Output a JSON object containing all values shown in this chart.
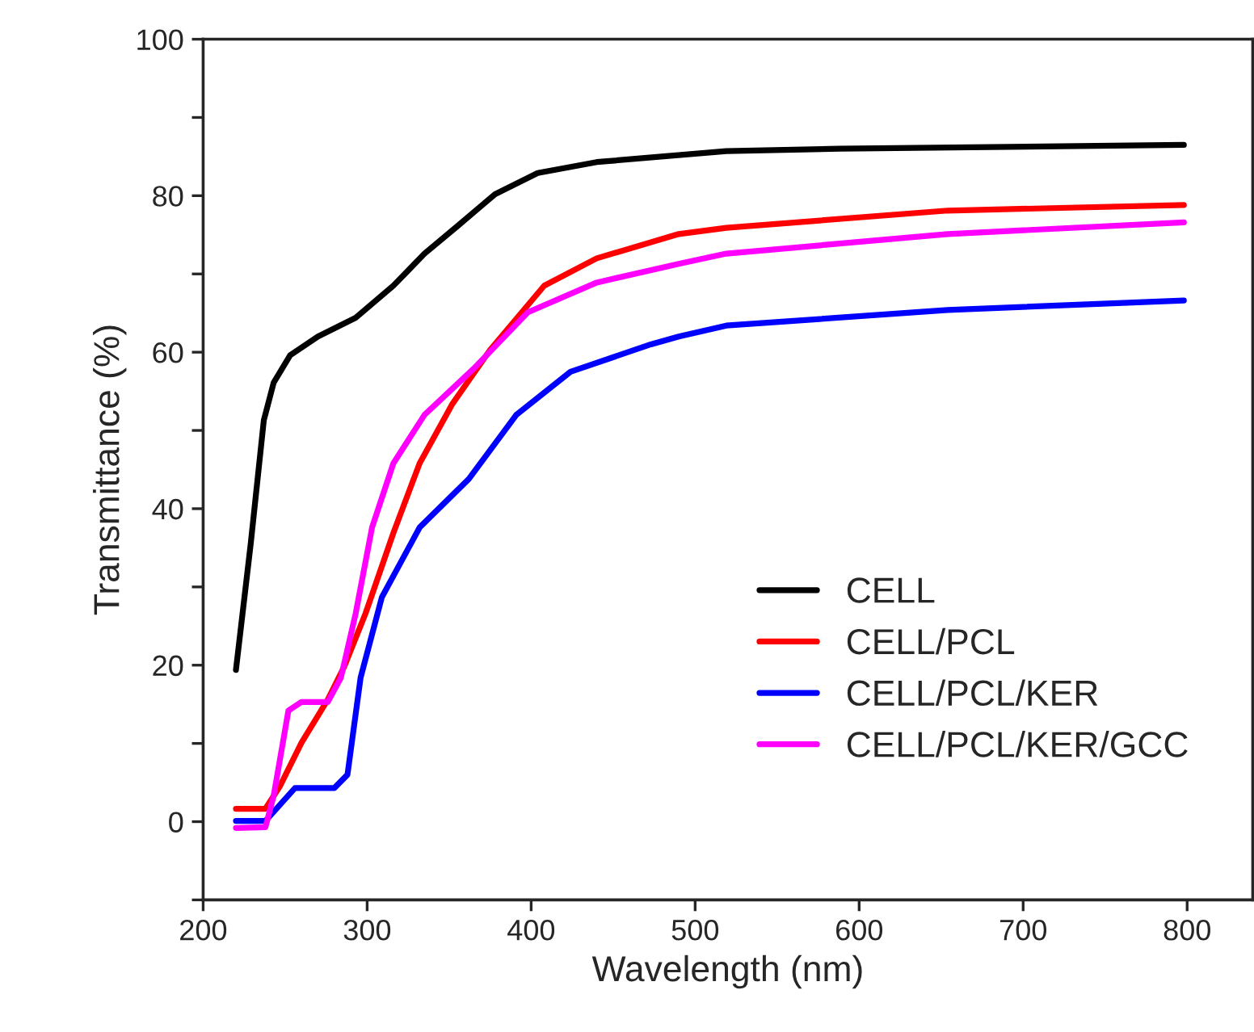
{
  "chart_data": {
    "type": "line",
    "xlabel": "Wavelength (nm)",
    "ylabel": "Transmittance (%)",
    "xlim": [
      200,
      840
    ],
    "xticks": [
      200,
      300,
      400,
      500,
      600,
      700,
      800
    ],
    "ylim": [
      -10,
      100
    ],
    "yticks": [
      {
        "value": -10,
        "label": null
      },
      0,
      {
        "value": 10,
        "label": null
      },
      20,
      {
        "value": 30,
        "label": null
      },
      40,
      {
        "value": 50,
        "label": null
      },
      60,
      {
        "value": 70,
        "label": null
      },
      80,
      {
        "value": 90,
        "label": null
      },
      100
    ],
    "grid": false,
    "legend": "bottom right",
    "marker": "none",
    "line_style": "solid",
    "series": [
      {
        "name": "CELL",
        "color": "#000000",
        "x": [
          220,
          229,
          237,
          243,
          253,
          270,
          293,
          316,
          335,
          355,
          378,
          404,
          440,
          519,
          588,
          798
        ],
        "values": [
          19.4,
          35.5,
          51.3,
          56.1,
          59.6,
          62,
          64.4,
          68.5,
          72.6,
          76.1,
          80.2,
          82.9,
          84.3,
          85.7,
          86.0,
          86.5
        ]
      },
      {
        "name": "CELL/PCL",
        "color": "#ff0000",
        "x": [
          220,
          238,
          247,
          260,
          276,
          286,
          299,
          316,
          332,
          352,
          375,
          408,
          440,
          490,
          519,
          654,
          798
        ],
        "values": [
          1.65,
          1.65,
          4.6,
          10.1,
          15.6,
          19.8,
          26.6,
          36.9,
          45.8,
          53.4,
          60.3,
          68.5,
          72,
          75.1,
          75.9,
          78.1,
          78.8
        ]
      },
      {
        "name": "CELL/PCL/KER",
        "color": "#0000ff",
        "x": [
          220,
          238,
          256,
          280,
          288,
          296,
          309,
          332,
          362,
          391,
          424,
          473,
          490,
          519,
          654,
          798
        ],
        "values": [
          0.1,
          0.1,
          4.3,
          4.3,
          6,
          18.4,
          28.7,
          37.6,
          43.8,
          52,
          57.5,
          61,
          62,
          63.4,
          65.4,
          66.6
        ]
      },
      {
        "name": "CELL/PCL/KER/GCC",
        "color": "#ff00ff",
        "x": [
          220,
          238,
          243,
          252,
          260,
          276,
          284,
          293,
          303,
          316,
          335,
          365,
          398,
          440,
          490,
          519,
          654,
          798
        ],
        "values": [
          -0.8,
          -0.7,
          3.3,
          14.2,
          15.3,
          15.3,
          18.4,
          26.6,
          37.6,
          45.8,
          52,
          57.9,
          65.1,
          68.9,
          71.3,
          72.6,
          75.1,
          76.6
        ]
      }
    ]
  }
}
